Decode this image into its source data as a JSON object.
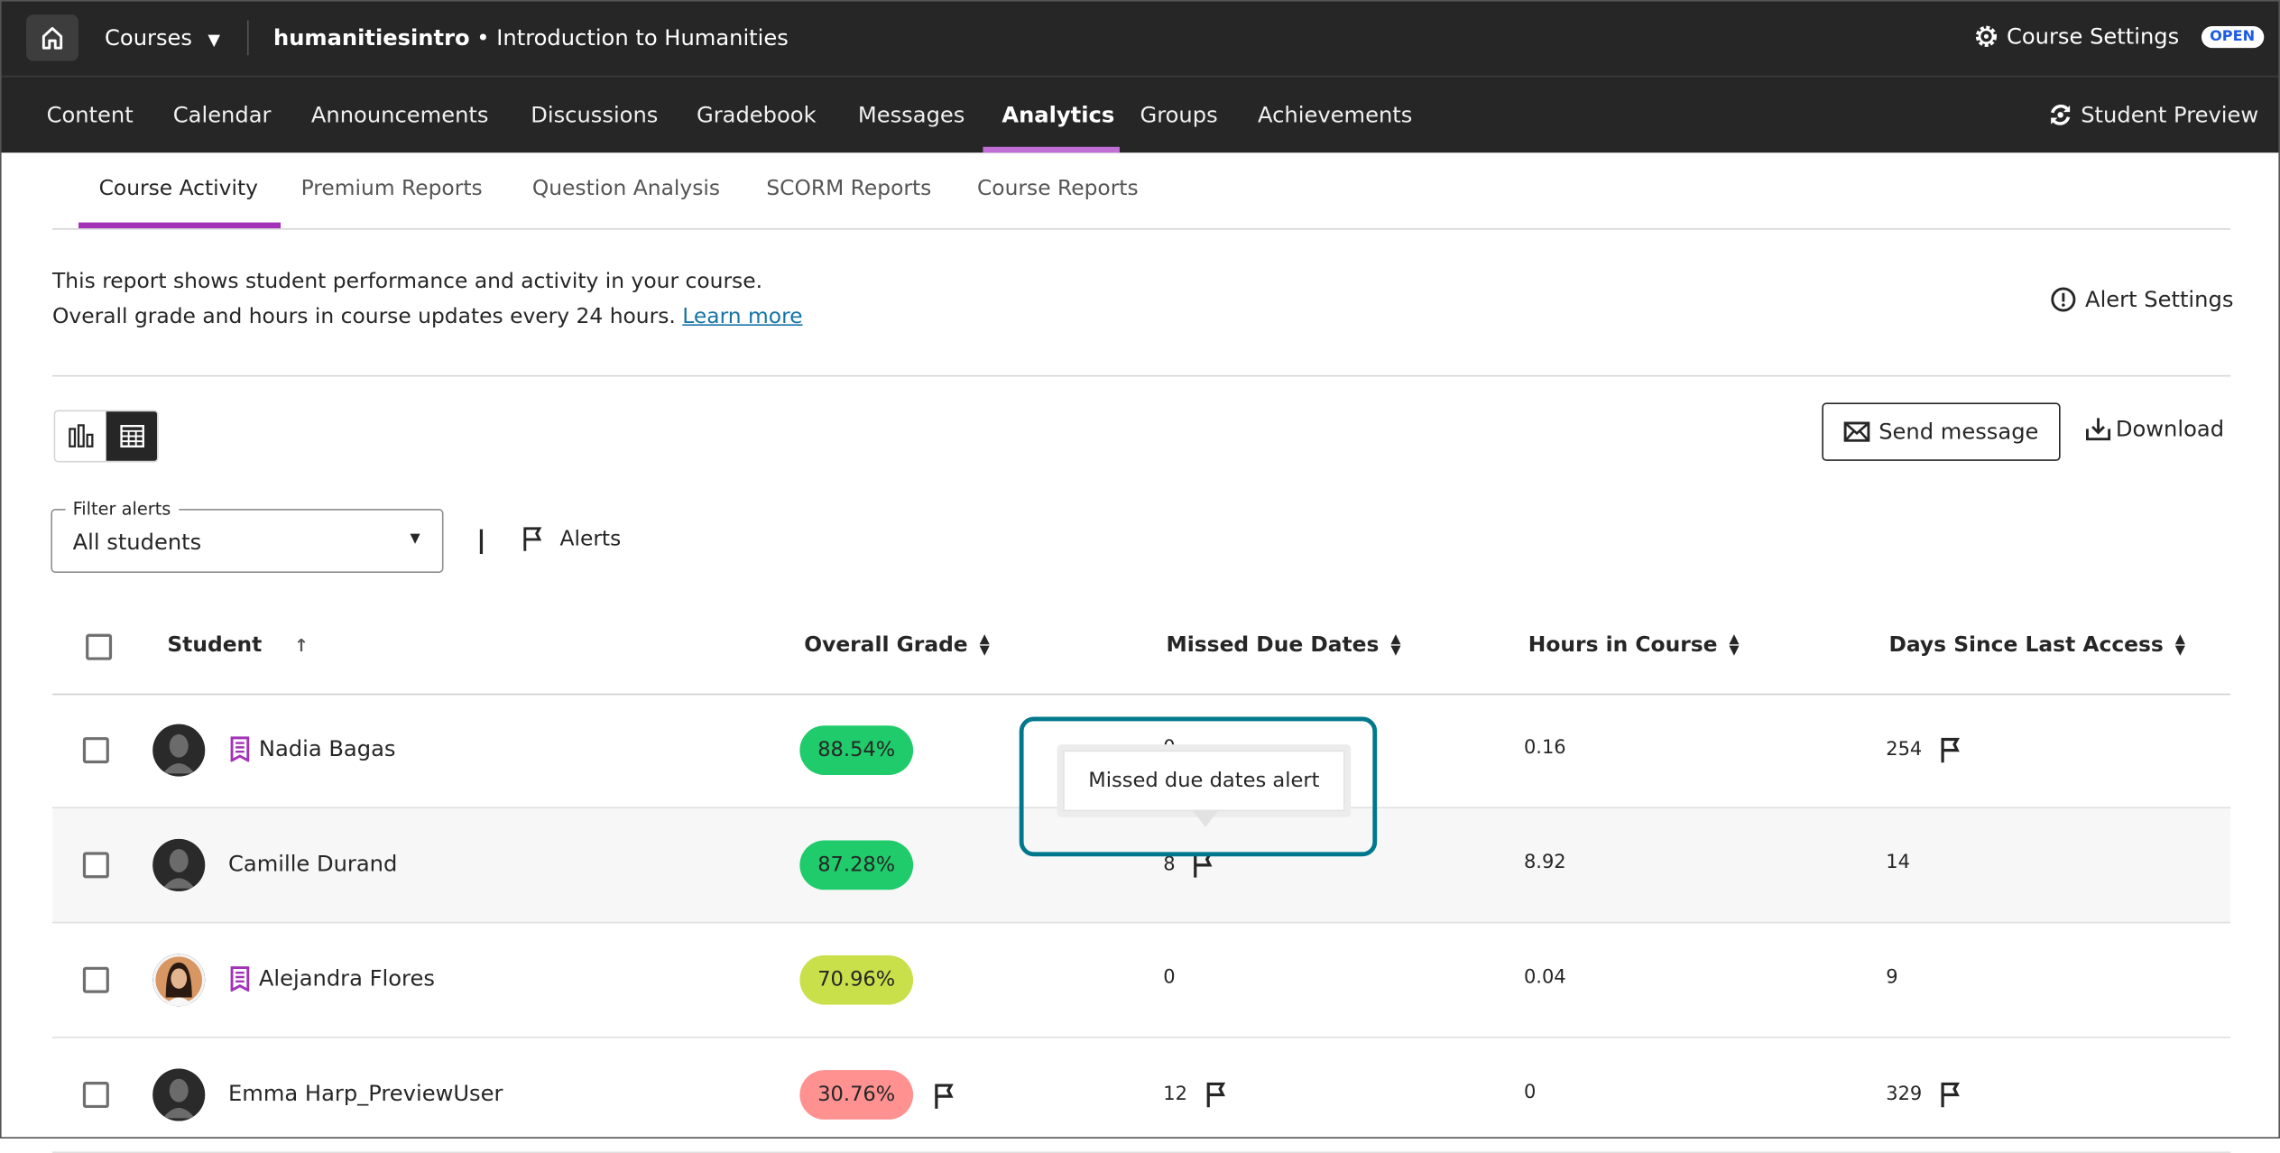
{
  "topbar": {
    "home_icon": "home-icon",
    "courses_label": "Courses",
    "course_id": "humanitiesintro",
    "separator": " • ",
    "course_name": "Introduction to Humanities",
    "settings_label": "Course Settings",
    "status_badge": "OPEN"
  },
  "nav": {
    "items": [
      "Content",
      "Calendar",
      "Announcements",
      "Discussions",
      "Gradebook",
      "Messages",
      "Analytics",
      "Groups",
      "Achievements"
    ],
    "active": "Analytics",
    "student_preview": "Student Preview",
    "accent": "#c06fd6"
  },
  "subtabs": {
    "items": [
      "Course Activity",
      "Premium Reports",
      "Question Analysis",
      "SCORM Reports",
      "Course Reports"
    ],
    "active": "Course Activity",
    "accent": "#a233b8"
  },
  "description": {
    "line1": "This report shows student performance and activity in your course.",
    "line2": "Overall grade and hours in course updates every 24 hours.",
    "learn_more": "Learn more",
    "alert_settings": "Alert Settings"
  },
  "toolbar": {
    "chart_view_icon": "bar-chart-icon",
    "table_view_icon": "table-icon",
    "selected_view": "table",
    "send_message": "Send message",
    "download": "Download"
  },
  "filter": {
    "legend": "Filter alerts",
    "value": "All students",
    "alerts_label": "Alerts"
  },
  "table": {
    "columns": [
      "Student",
      "Overall Grade",
      "Missed Due Dates",
      "Hours in Course",
      "Days Since Last Access"
    ],
    "rows": [
      {
        "name": "Nadia Bagas",
        "badge": true,
        "grade": "88.54%",
        "grade_color": "#1fcb6a",
        "grade_flag": false,
        "missed": "0",
        "missed_flag": false,
        "hours": "0.16",
        "days": "254",
        "days_flag": true
      },
      {
        "name": "Camille Durand",
        "badge": false,
        "grade": "87.28%",
        "grade_color": "#1fcb6a",
        "grade_flag": false,
        "missed": "8",
        "missed_flag": true,
        "hours": "8.92",
        "days": "14",
        "days_flag": false
      },
      {
        "name": "Alejandra Flores",
        "badge": true,
        "grade": "70.96%",
        "grade_color": "#c9e04a",
        "grade_flag": false,
        "missed": "0",
        "missed_flag": false,
        "hours": "0.04",
        "days": "9",
        "days_flag": false,
        "photo": true
      },
      {
        "name": "Emma Harp_PreviewUser",
        "badge": false,
        "grade": "30.76%",
        "grade_color": "#ff9191",
        "grade_flag": true,
        "missed": "12",
        "missed_flag": true,
        "hours": "0",
        "days": "329",
        "days_flag": true
      }
    ]
  },
  "tooltip": {
    "text": "Missed due dates alert",
    "focus_color": "#00788c"
  }
}
